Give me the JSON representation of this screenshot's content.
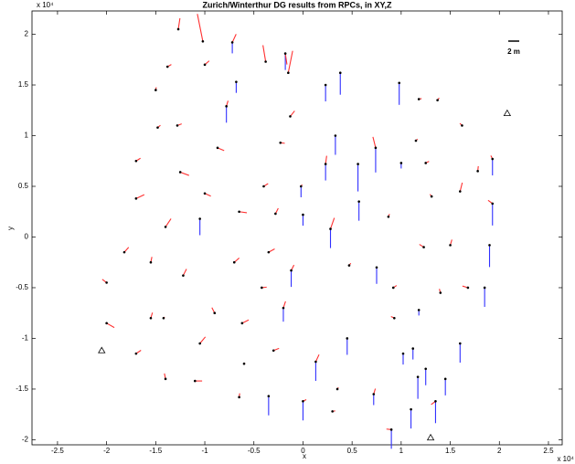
{
  "chart_data": {
    "type": "quiver",
    "title": "Zurich/Winterthur DG results from RPCs, in XY,Z",
    "xlabel": "x",
    "ylabel": "y",
    "x_multiplier_label": "x 10⁴",
    "y_multiplier_label": "x 10⁴",
    "xlim": [
      -2.76,
      2.64
    ],
    "ylim": [
      -2.05,
      2.23
    ],
    "xticks": [
      -2.5,
      -2,
      -1.5,
      -1,
      -0.5,
      0,
      0.5,
      1,
      1.5,
      2,
      2.5
    ],
    "yticks": [
      -2,
      -1.5,
      -1,
      -0.5,
      0,
      0.5,
      1,
      1.5,
      2
    ],
    "grid": false,
    "xy_color": "#ff3030",
    "z_color": "#3030ff",
    "point_color": "#000000",
    "scale_bar": {
      "value": 2,
      "label": "2 m"
    },
    "x": [
      -1.27,
      -1.02,
      -0.72,
      -0.38,
      -0.18,
      -0.15,
      -1.38,
      -1.0,
      -0.68,
      -1.5,
      -0.78,
      0.38,
      0.23,
      -0.13,
      0.98,
      1.18,
      1.37,
      1.62,
      -1.48,
      -1.28,
      -0.87,
      -0.23,
      0.33,
      0.74,
      1.15,
      1.0,
      1.25,
      -1.7,
      -1.25,
      0.23,
      0.56,
      1.93,
      1.78,
      1.6,
      -1.7,
      -1.0,
      -0.4,
      -0.02,
      1.31,
      1.93,
      -1.4,
      -1.05,
      -0.65,
      -0.28,
      0.0,
      0.57,
      0.87,
      -1.82,
      -1.55,
      -0.7,
      -0.35,
      0.28,
      1.23,
      1.5,
      1.9,
      -2.0,
      -1.22,
      -0.42,
      -0.12,
      0.47,
      0.75,
      1.68,
      1.85,
      1.4,
      0.92,
      -2.0,
      -1.55,
      -1.42,
      -0.9,
      -0.62,
      -0.2,
      0.93,
      1.18,
      -1.05,
      -1.7,
      -0.3,
      0.13,
      0.45,
      1.02,
      1.12,
      1.6,
      1.25,
      1.17,
      -1.4,
      -1.1,
      -0.6,
      -0.65,
      -0.35,
      0.35,
      0.72,
      1.45,
      0.0,
      0.3,
      0.9,
      1.1,
      1.35
    ],
    "y": [
      2.05,
      1.93,
      1.92,
      1.73,
      1.81,
      1.62,
      1.68,
      1.7,
      1.53,
      1.45,
      1.29,
      1.62,
      1.5,
      1.19,
      1.52,
      1.36,
      1.35,
      1.1,
      1.08,
      1.1,
      0.88,
      0.93,
      1.0,
      0.88,
      0.95,
      0.73,
      0.73,
      0.75,
      0.64,
      0.72,
      0.72,
      0.77,
      0.65,
      0.45,
      0.38,
      0.43,
      0.5,
      0.5,
      0.4,
      0.33,
      0.1,
      0.18,
      0.25,
      0.23,
      0.22,
      0.35,
      0.2,
      -0.15,
      -0.25,
      -0.25,
      -0.15,
      0.08,
      -0.1,
      -0.08,
      -0.08,
      -0.45,
      -0.38,
      -0.5,
      -0.33,
      -0.28,
      -0.3,
      -0.5,
      -0.5,
      -0.55,
      -0.5,
      -0.85,
      -0.8,
      -0.8,
      -0.75,
      -0.85,
      -0.7,
      -0.8,
      -0.72,
      -1.05,
      -1.15,
      -1.12,
      -1.23,
      -1.0,
      -1.15,
      -1.1,
      -1.05,
      -1.3,
      -1.38,
      -1.4,
      -1.42,
      -1.25,
      -1.58,
      -1.57,
      -1.5,
      -1.55,
      -1.4,
      -1.62,
      -1.72,
      -1.9,
      -1.7,
      -1.62
    ],
    "u": [
      0.3,
      -1,
      0.7,
      -0.5,
      0.3,
      0.8,
      0.7,
      0.8,
      0,
      0.1,
      0.3,
      0,
      0,
      0.8,
      0,
      0.5,
      0.3,
      -0.4,
      0.5,
      0.8,
      1.2,
      0.8,
      0,
      -0.5,
      0.3,
      0,
      0.6,
      0.8,
      1.6,
      0.2,
      0,
      -0.3,
      0.1,
      0.4,
      1.5,
      1.1,
      0.8,
      0.2,
      -0.3,
      -0.8,
      1.0,
      0,
      1.4,
      0.5,
      0,
      0,
      0.2,
      0.8,
      0.2,
      0.9,
      1.1,
      0.7,
      -0.8,
      0.3,
      0,
      -0.8,
      0.6,
      0.9,
      0.5,
      0.3,
      0,
      -1,
      0,
      -0.2,
      0.6,
      1.4,
      0.3,
      0.2,
      -0.5,
      1.2,
      0.4,
      -0.6,
      0,
      1,
      0.9,
      1,
      0.6,
      0,
      0,
      0,
      0,
      0,
      0,
      -0.2,
      1.3,
      0.2,
      0.1,
      0,
      0.2,
      0.3,
      0,
      0.6,
      0.5,
      -0.9,
      0,
      -0.8
    ],
    "v": [
      2,
      5,
      1.5,
      3,
      -2,
      4,
      0.4,
      0.7,
      0,
      0.5,
      1,
      0,
      0,
      1,
      0,
      0.1,
      0.4,
      0.4,
      0.4,
      0.3,
      -0.5,
      -0.1,
      0,
      2,
      0.3,
      0,
      0.3,
      0.5,
      -0.6,
      1.5,
      0,
      0.6,
      0.9,
      1.6,
      0.7,
      -0.5,
      0.5,
      0.3,
      0.4,
      0.6,
      1.5,
      0,
      -0.2,
      1,
      0,
      0,
      0.5,
      0.9,
      1,
      0.8,
      0.6,
      2,
      0.5,
      1,
      0,
      0.6,
      1.2,
      0.1,
      1,
      0.4,
      0,
      0.3,
      0,
      0.7,
      0.4,
      -0.8,
      1,
      0.2,
      1,
      0.6,
      1.2,
      0.3,
      0,
      1.2,
      0.6,
      0.4,
      1.3,
      0,
      0,
      0,
      0,
      0,
      0,
      1,
      0,
      0.1,
      0.7,
      0,
      0.3,
      1,
      0,
      0.3,
      0.1,
      0.1,
      0,
      -0.6
    ],
    "w": [
      0,
      0,
      -2,
      0,
      -3,
      0,
      0,
      0,
      -2,
      0,
      -3,
      -4,
      -3,
      0,
      -4,
      0,
      0,
      0,
      0,
      0,
      0,
      0,
      -3.5,
      -4.5,
      0,
      -1,
      0,
      0,
      0,
      -3,
      -5,
      -3,
      0,
      0,
      0,
      0,
      0,
      -2,
      0,
      -4,
      0,
      -3,
      0,
      0,
      -2,
      -3.5,
      0,
      0,
      0,
      0,
      0,
      -3.5,
      0,
      0,
      -4,
      0,
      0,
      0,
      -3,
      0,
      -3,
      0,
      -3.5,
      0,
      0,
      0,
      0,
      0,
      0,
      0,
      -2.5,
      0,
      -1,
      0,
      0,
      0,
      -3.5,
      -3,
      -2,
      -2,
      -3.5,
      -3,
      -4,
      0,
      0,
      0,
      0,
      -3.5,
      0,
      -2,
      -3,
      -3.5,
      0,
      -3.5,
      -3.5,
      -4
    ],
    "reference_points": {
      "x": [
        -2.05,
        2.08,
        1.3
      ],
      "y": [
        -1.12,
        1.22,
        -1.98
      ]
    }
  }
}
